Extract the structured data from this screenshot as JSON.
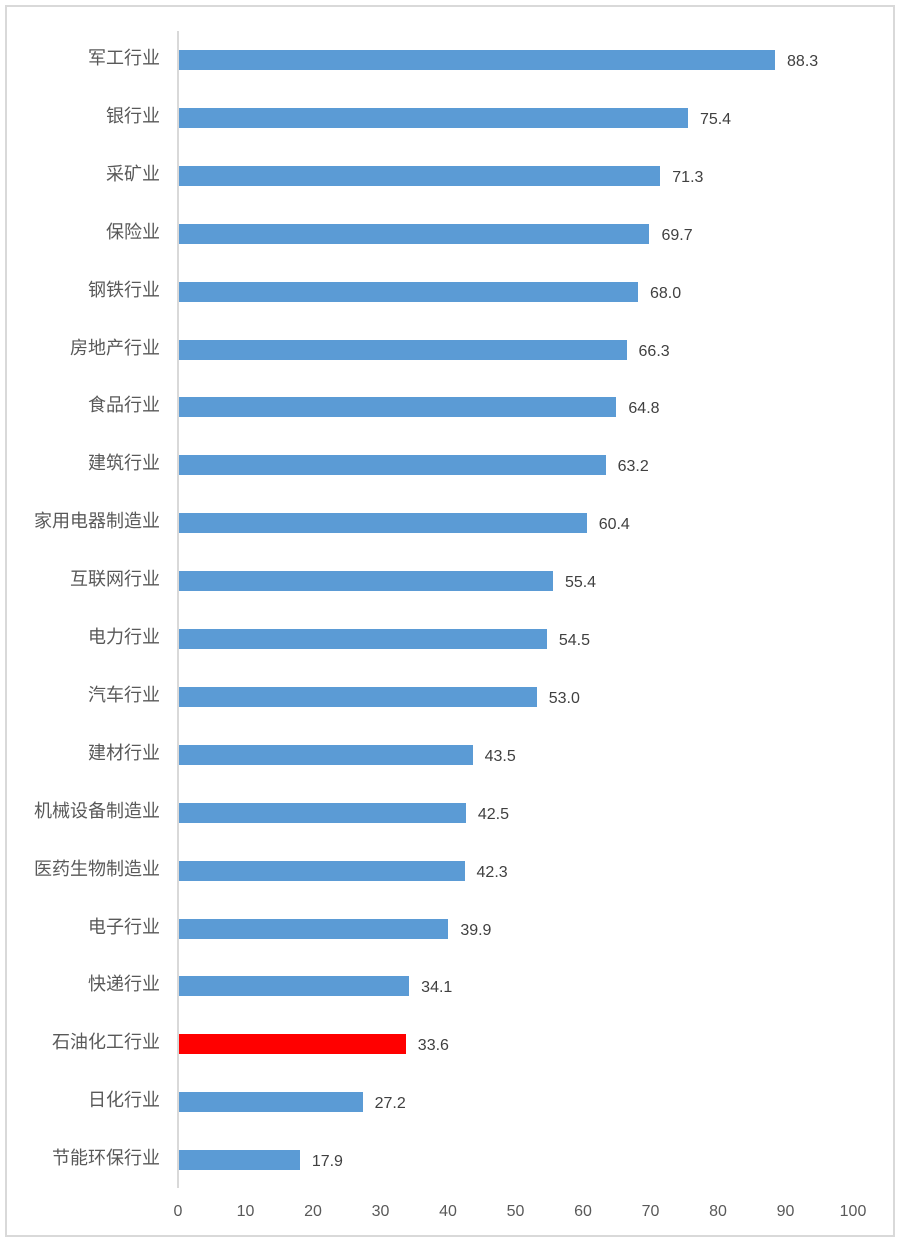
{
  "chart_data": {
    "type": "bar",
    "orientation": "horizontal",
    "title": "",
    "xlabel": "",
    "ylabel": "",
    "xlim": [
      0,
      100
    ],
    "x_ticks": [
      0,
      10,
      20,
      30,
      40,
      50,
      60,
      70,
      80,
      90,
      100
    ],
    "grid": false,
    "legend": null,
    "data_labels": true,
    "categories": [
      "军工行业",
      "银行业",
      "采矿业",
      "保险业",
      "钢铁行业",
      "房地产行业",
      "食品行业",
      "建筑行业",
      "家用电器制造业",
      "互联网行业",
      "电力行业",
      "汽车行业",
      "建材行业",
      "机械设备制造业",
      "医药生物制造业",
      "电子行业",
      "快递行业",
      "石油化工行业",
      "日化行业",
      "节能环保行业"
    ],
    "values": [
      88.3,
      75.4,
      71.3,
      69.7,
      68.0,
      66.3,
      64.8,
      63.2,
      60.4,
      55.4,
      54.5,
      53.0,
      43.5,
      42.5,
      42.3,
      39.9,
      34.1,
      33.6,
      27.2,
      17.9
    ],
    "value_labels": [
      "88.3",
      "75.4",
      "71.3",
      "69.7",
      "68.0",
      "66.3",
      "64.8",
      "63.2",
      "60.4",
      "55.4",
      "54.5",
      "53.0",
      "43.5",
      "42.5",
      "42.3",
      "39.9",
      "34.1",
      "33.6",
      "27.2",
      "17.9"
    ],
    "colors": {
      "default_bar": "#5b9bd5",
      "highlight_bar": "#ff0000",
      "highlight_category": "石油化工行业",
      "axis": "#d9d9d9",
      "label_text": "#595959",
      "value_text": "#404040"
    }
  },
  "tick_labels": [
    "0",
    "10",
    "20",
    "30",
    "40",
    "50",
    "60",
    "70",
    "80",
    "90",
    "100"
  ]
}
